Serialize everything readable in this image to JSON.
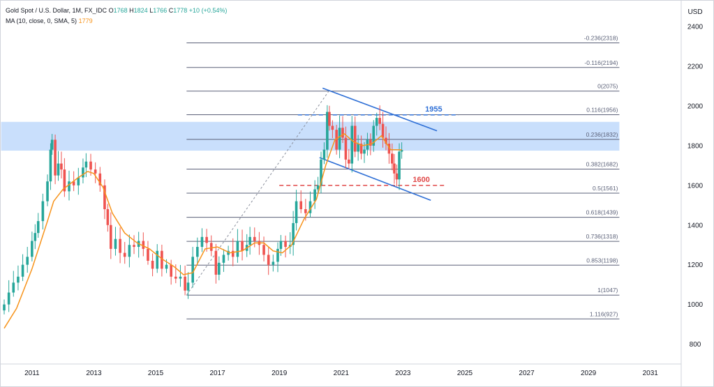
{
  "legend": {
    "symbol": "Gold Spot / U.S. Dollar, 1M, FX_IDC",
    "o_label": "O",
    "o_value": "1768",
    "h_label": "H",
    "h_value": "1824",
    "l_label": "L",
    "l_value": "1766",
    "c_label": "C",
    "c_value": "1778",
    "change": "+10 (+0.54%)",
    "ma_label": "MA (10, close, 0, SMA, 5)",
    "ma_value": "1779"
  },
  "colors": {
    "up": "#26a69a",
    "down": "#ef5350",
    "ma": "#f7931a",
    "fib": "#5b6178",
    "zone": "#bbd7fb",
    "trend": "#2e6fd6",
    "level_1955": "#2e6fd6",
    "level_1600": "#e04848",
    "border": "#d1d4dc",
    "axis_text": "#131722"
  },
  "chart_data": {
    "type": "candlestick",
    "y_unit": "USD",
    "ylim": [
      700,
      2520
    ],
    "xlim": [
      2010.1,
      2032.0
    ],
    "y_ticks": [
      800,
      1000,
      1200,
      1400,
      1600,
      1800,
      2000,
      2200,
      2400
    ],
    "x_ticks": [
      "2011",
      "2013",
      "2015",
      "2017",
      "2019",
      "2021",
      "2023",
      "2025",
      "2027",
      "2029",
      "2031"
    ],
    "fibonacci": {
      "x_start": 2016.0,
      "x_end": 2030.0,
      "levels": [
        {
          "label": "-0.236(2318)",
          "value": 2318
        },
        {
          "label": "-0.116(2194)",
          "value": 2194
        },
        {
          "label": "0(2075)",
          "value": 2075
        },
        {
          "label": "0.116(1956)",
          "value": 1956
        },
        {
          "label": "0.236(1832)",
          "value": 1832
        },
        {
          "label": "0.382(1682)",
          "value": 1682
        },
        {
          "label": "0.5(1561)",
          "value": 1561
        },
        {
          "label": "0.618(1439)",
          "value": 1439
        },
        {
          "label": "0.736(1318)",
          "value": 1318
        },
        {
          "label": "0.853(1198)",
          "value": 1198
        },
        {
          "label": "1(1047)",
          "value": 1047
        },
        {
          "label": "1.116(927)",
          "value": 927
        }
      ]
    },
    "zone": {
      "x_start": 2010.0,
      "x_end": 2030.0,
      "y_low": 1775,
      "y_high": 1920
    },
    "horizontal_levels": [
      {
        "label": "1955",
        "value": 1955,
        "x_start": 2019.6,
        "x_end": 2024.8,
        "color_key": "level_1955"
      },
      {
        "label": "1600",
        "value": 1600,
        "x_start": 2019.0,
        "x_end": 2024.4,
        "color_key": "level_1600"
      }
    ],
    "trendlines": [
      {
        "name": "channel-top",
        "x1": 2020.4,
        "y1": 2090,
        "x2": 2024.1,
        "y2": 1875
      },
      {
        "name": "channel-bottom",
        "x1": 2020.3,
        "y1": 1740,
        "x2": 2023.9,
        "y2": 1525
      },
      {
        "name": "fib-anchor",
        "x1": 2016.0,
        "y1": 1047,
        "x2": 2020.6,
        "y2": 2075,
        "dashed": true
      }
    ],
    "monthly_close": [
      [
        2010.1,
        1000
      ],
      [
        2010.25,
        1060
      ],
      [
        2010.4,
        1110
      ],
      [
        2010.55,
        1140
      ],
      [
        2010.7,
        1200
      ],
      [
        2010.85,
        1240
      ],
      [
        2011.0,
        1320
      ],
      [
        2011.1,
        1360
      ],
      [
        2011.2,
        1420
      ],
      [
        2011.35,
        1520
      ],
      [
        2011.5,
        1620
      ],
      [
        2011.6,
        1780
      ],
      [
        2011.65,
        1830
      ],
      [
        2011.75,
        1650
      ],
      [
        2011.85,
        1710
      ],
      [
        2011.95,
        1680
      ],
      [
        2012.05,
        1570
      ],
      [
        2012.2,
        1620
      ],
      [
        2012.35,
        1600
      ],
      [
        2012.5,
        1640
      ],
      [
        2012.65,
        1690
      ],
      [
        2012.75,
        1720
      ],
      [
        2012.9,
        1680
      ],
      [
        2013.05,
        1660
      ],
      [
        2013.2,
        1600
      ],
      [
        2013.35,
        1480
      ],
      [
        2013.45,
        1400
      ],
      [
        2013.55,
        1280
      ],
      [
        2013.7,
        1330
      ],
      [
        2013.85,
        1260
      ],
      [
        2014.0,
        1240
      ],
      [
        2014.15,
        1300
      ],
      [
        2014.3,
        1290
      ],
      [
        2014.45,
        1320
      ],
      [
        2014.6,
        1280
      ],
      [
        2014.75,
        1220
      ],
      [
        2014.9,
        1180
      ],
      [
        2015.05,
        1270
      ],
      [
        2015.2,
        1180
      ],
      [
        2015.35,
        1200
      ],
      [
        2015.5,
        1140
      ],
      [
        2015.65,
        1130
      ],
      [
        2015.8,
        1140
      ],
      [
        2015.95,
        1070
      ],
      [
        2016.05,
        1110
      ],
      [
        2016.2,
        1240
      ],
      [
        2016.35,
        1290
      ],
      [
        2016.5,
        1340
      ],
      [
        2016.65,
        1310
      ],
      [
        2016.8,
        1270
      ],
      [
        2016.95,
        1150
      ],
      [
        2017.05,
        1210
      ],
      [
        2017.2,
        1250
      ],
      [
        2017.35,
        1270
      ],
      [
        2017.5,
        1240
      ],
      [
        2017.65,
        1320
      ],
      [
        2017.8,
        1270
      ],
      [
        2017.95,
        1300
      ],
      [
        2018.05,
        1340
      ],
      [
        2018.2,
        1320
      ],
      [
        2018.35,
        1300
      ],
      [
        2018.5,
        1250
      ],
      [
        2018.65,
        1200
      ],
      [
        2018.8,
        1215
      ],
      [
        2018.95,
        1280
      ],
      [
        2019.05,
        1320
      ],
      [
        2019.2,
        1290
      ],
      [
        2019.35,
        1300
      ],
      [
        2019.45,
        1410
      ],
      [
        2019.55,
        1520
      ],
      [
        2019.7,
        1480
      ],
      [
        2019.85,
        1460
      ],
      [
        2020.0,
        1520
      ],
      [
        2020.15,
        1580
      ],
      [
        2020.25,
        1600
      ],
      [
        2020.35,
        1730
      ],
      [
        2020.45,
        1780
      ],
      [
        2020.55,
        1970
      ],
      [
        2020.62,
        1900
      ],
      [
        2020.72,
        1880
      ],
      [
        2020.85,
        1780
      ],
      [
        2020.95,
        1890
      ],
      [
        2021.05,
        1840
      ],
      [
        2021.15,
        1730
      ],
      [
        2021.25,
        1710
      ],
      [
        2021.35,
        1900
      ],
      [
        2021.45,
        1770
      ],
      [
        2021.55,
        1810
      ],
      [
        2021.65,
        1760
      ],
      [
        2021.75,
        1780
      ],
      [
        2021.85,
        1830
      ],
      [
        2021.95,
        1800
      ],
      [
        2022.05,
        1900
      ],
      [
        2022.15,
        1940
      ],
      [
        2022.25,
        1910
      ],
      [
        2022.35,
        1840
      ],
      [
        2022.45,
        1810
      ],
      [
        2022.55,
        1760
      ],
      [
        2022.65,
        1710
      ],
      [
        2022.72,
        1660
      ],
      [
        2022.8,
        1630
      ],
      [
        2022.88,
        1770
      ],
      [
        2022.96,
        1778
      ]
    ],
    "moving_average": [
      [
        2010.1,
        880
      ],
      [
        2010.5,
        980
      ],
      [
        2011.0,
        1180
      ],
      [
        2011.5,
        1420
      ],
      [
        2011.7,
        1520
      ],
      [
        2012.0,
        1580
      ],
      [
        2012.5,
        1640
      ],
      [
        2012.8,
        1670
      ],
      [
        2013.0,
        1660
      ],
      [
        2013.3,
        1590
      ],
      [
        2013.6,
        1460
      ],
      [
        2014.0,
        1360
      ],
      [
        2014.4,
        1310
      ],
      [
        2014.8,
        1280
      ],
      [
        2015.2,
        1230
      ],
      [
        2015.6,
        1190
      ],
      [
        2015.9,
        1150
      ],
      [
        2016.2,
        1160
      ],
      [
        2016.6,
        1280
      ],
      [
        2017.0,
        1290
      ],
      [
        2017.4,
        1260
      ],
      [
        2017.8,
        1270
      ],
      [
        2018.2,
        1310
      ],
      [
        2018.5,
        1310
      ],
      [
        2018.8,
        1270
      ],
      [
        2019.1,
        1260
      ],
      [
        2019.4,
        1300
      ],
      [
        2019.8,
        1430
      ],
      [
        2020.2,
        1530
      ],
      [
        2020.5,
        1700
      ],
      [
        2020.8,
        1830
      ],
      [
        2021.1,
        1860
      ],
      [
        2021.4,
        1820
      ],
      [
        2021.7,
        1800
      ],
      [
        2022.0,
        1810
      ],
      [
        2022.3,
        1850
      ],
      [
        2022.6,
        1780
      ],
      [
        2022.96,
        1779
      ]
    ]
  }
}
